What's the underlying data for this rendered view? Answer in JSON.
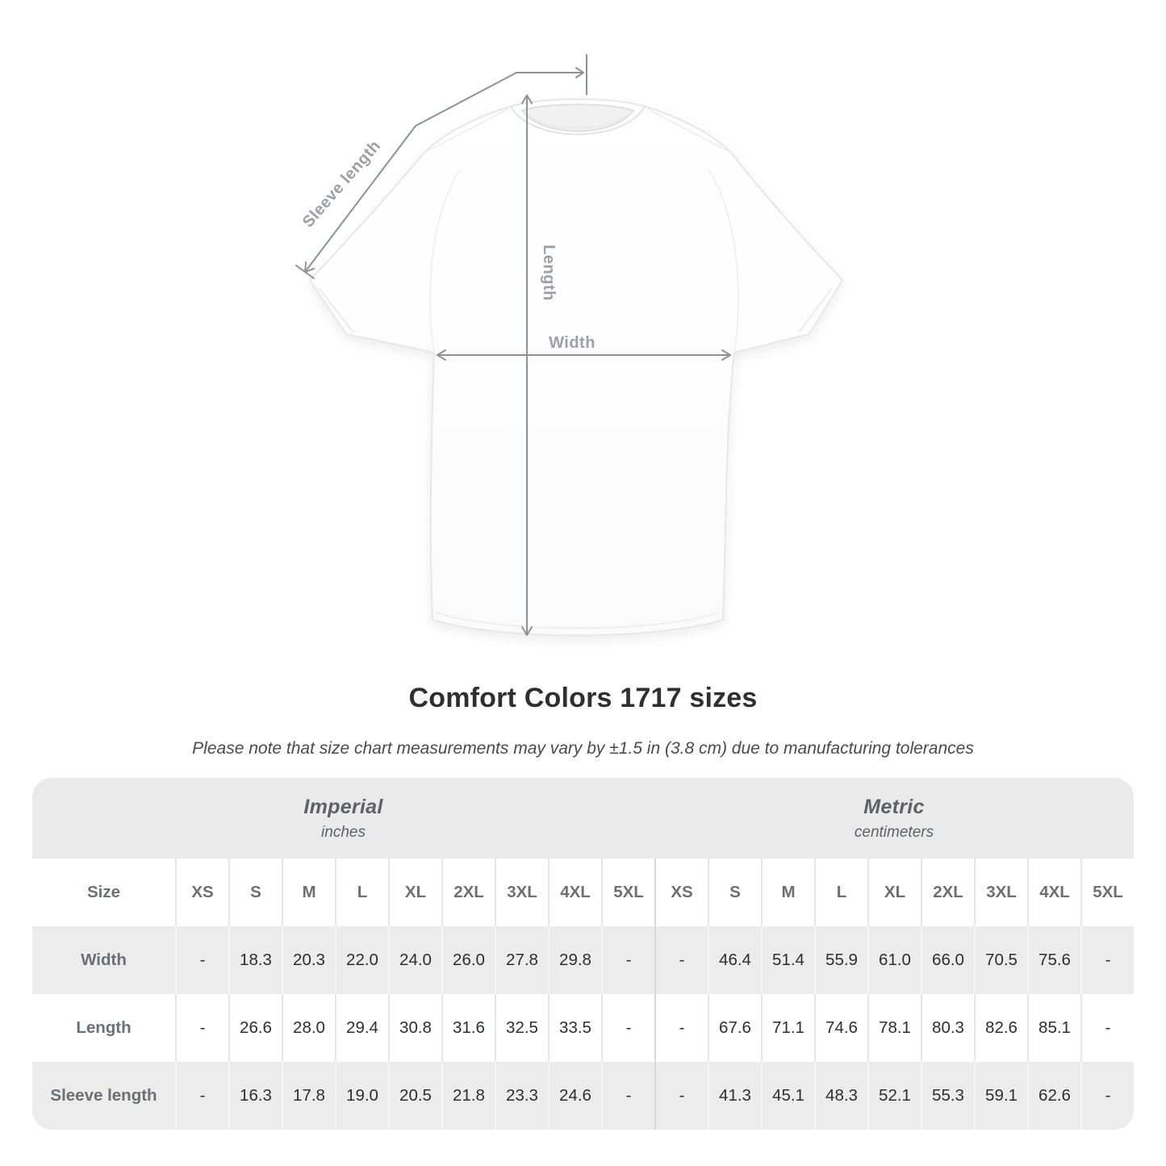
{
  "title": "Comfort Colors 1717 sizes",
  "subtitle": "Please note that size chart measurements may vary by ±1.5 in (3.8 cm) due to manufacturing tolerances",
  "diagram": {
    "sleeve_length_label": "Sleeve length",
    "length_label": "Length",
    "width_label": "Width",
    "line_color": "#8d9296",
    "label_color": "#9aa0a5"
  },
  "table": {
    "size_header": "Size",
    "unit_groups": [
      {
        "name": "Imperial",
        "unit": "inches"
      },
      {
        "name": "Metric",
        "unit": "centimeters"
      }
    ]
  },
  "chart_data": {
    "type": "table",
    "title": "Comfort Colors 1717 sizes",
    "note": "Measurements may vary by ±1.5 in (3.8 cm) due to manufacturing tolerances",
    "columns": [
      "XS",
      "S",
      "M",
      "L",
      "XL",
      "2XL",
      "3XL",
      "4XL",
      "5XL"
    ],
    "unit_sections": [
      "inches",
      "centimeters"
    ],
    "rows": [
      {
        "label": "Width",
        "imperial": [
          "-",
          "18.3",
          "20.3",
          "22.0",
          "24.0",
          "26.0",
          "27.8",
          "29.8",
          "-"
        ],
        "metric": [
          "-",
          "46.4",
          "51.4",
          "55.9",
          "61.0",
          "66.0",
          "70.5",
          "75.6",
          "-"
        ]
      },
      {
        "label": "Length",
        "imperial": [
          "-",
          "26.6",
          "28.0",
          "29.4",
          "30.8",
          "31.6",
          "32.5",
          "33.5",
          "-"
        ],
        "metric": [
          "-",
          "67.6",
          "71.1",
          "74.6",
          "78.1",
          "80.3",
          "82.6",
          "85.1",
          "-"
        ]
      },
      {
        "label": "Sleeve length",
        "imperial": [
          "-",
          "16.3",
          "17.8",
          "19.0",
          "20.5",
          "21.8",
          "23.3",
          "24.6",
          "-"
        ],
        "metric": [
          "-",
          "41.3",
          "45.1",
          "48.3",
          "52.1",
          "55.3",
          "59.1",
          "62.6",
          "-"
        ]
      }
    ]
  },
  "colors": {
    "row_alt_bg": "#ececec",
    "band_bg": "#eaeaea",
    "value_text": "#2c2e30",
    "label_text": "#6b7076",
    "section_divider": "#d9d9d9"
  }
}
